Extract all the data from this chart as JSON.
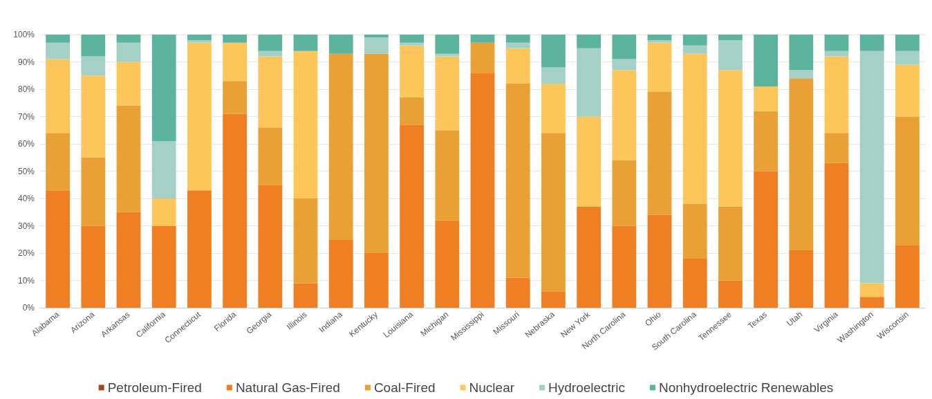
{
  "chart_data": {
    "type": "bar",
    "stacked": true,
    "categories": [
      "Alabama",
      "Arizona",
      "Arkansas",
      "California",
      "Connecticut",
      "Florida",
      "Georgia",
      "Illinois",
      "Indiana",
      "Kentucky",
      "Louisiana",
      "Michigan",
      "Mississippi",
      "Missouri",
      "Nebraska",
      "New York",
      "North Carolina",
      "Ohio",
      "South Carolina",
      "Tennessee",
      "Texas",
      "Utah",
      "Virginia",
      "Washington",
      "Wisconsin"
    ],
    "series": [
      {
        "name": "Petroleum-Fired",
        "color": "#a04a1c",
        "values": [
          0,
          0,
          0,
          0,
          0,
          0,
          0,
          0,
          0,
          0,
          0,
          0,
          0,
          0,
          0,
          0,
          0,
          0,
          0,
          0,
          0,
          0,
          0,
          0,
          0
        ]
      },
      {
        "name": "Natural Gas-Fired",
        "color": "#ef7f22",
        "values": [
          43,
          30,
          35,
          30,
          43,
          71,
          45,
          9,
          25,
          20,
          67,
          32,
          86,
          11,
          6,
          37,
          30,
          34,
          18,
          10,
          50,
          21,
          53,
          4,
          23
        ]
      },
      {
        "name": "Coal-Fired",
        "color": "#e9a135",
        "values": [
          21,
          25,
          39,
          0,
          0,
          12,
          21,
          31,
          68,
          73,
          10,
          33,
          11,
          71,
          58,
          0,
          24,
          45,
          20,
          27,
          22,
          63,
          11,
          0,
          47
        ]
      },
      {
        "name": "Nuclear",
        "color": "#fcc65b",
        "values": [
          27,
          30,
          16,
          10,
          54,
          14,
          26,
          54,
          0,
          0,
          19,
          27,
          0,
          13,
          18,
          33,
          33,
          18,
          55,
          50,
          9,
          0,
          28,
          5,
          19
        ]
      },
      {
        "name": "Hydroelectric",
        "color": "#a5d0c5",
        "values": [
          6,
          7,
          7,
          21,
          1,
          0,
          2,
          0,
          0,
          6,
          1,
          1,
          0,
          2,
          6,
          25,
          4,
          1,
          3,
          11,
          0,
          3,
          2,
          85,
          5
        ]
      },
      {
        "name": "Nonhydroelectric Renewables",
        "color": "#5db49e",
        "values": [
          3,
          8,
          3,
          39,
          2,
          3,
          6,
          6,
          7,
          1,
          3,
          7,
          3,
          3,
          12,
          5,
          9,
          2,
          4,
          2,
          19,
          13,
          6,
          6,
          6
        ]
      }
    ],
    "ylim": [
      0,
      100
    ],
    "yticks": [
      {
        "value": 0,
        "label": "0%"
      },
      {
        "value": 10,
        "label": "10%"
      },
      {
        "value": 20,
        "label": "20%"
      },
      {
        "value": 30,
        "label": "30%"
      },
      {
        "value": 40,
        "label": "40%"
      },
      {
        "value": 50,
        "label": "50%"
      },
      {
        "value": 60,
        "label": "60%"
      },
      {
        "value": 70,
        "label": "70%"
      },
      {
        "value": 80,
        "label": "80%"
      },
      {
        "value": 90,
        "label": "90%"
      },
      {
        "value": 100,
        "label": "100%"
      }
    ],
    "grid": "y",
    "legend": "bottom"
  }
}
